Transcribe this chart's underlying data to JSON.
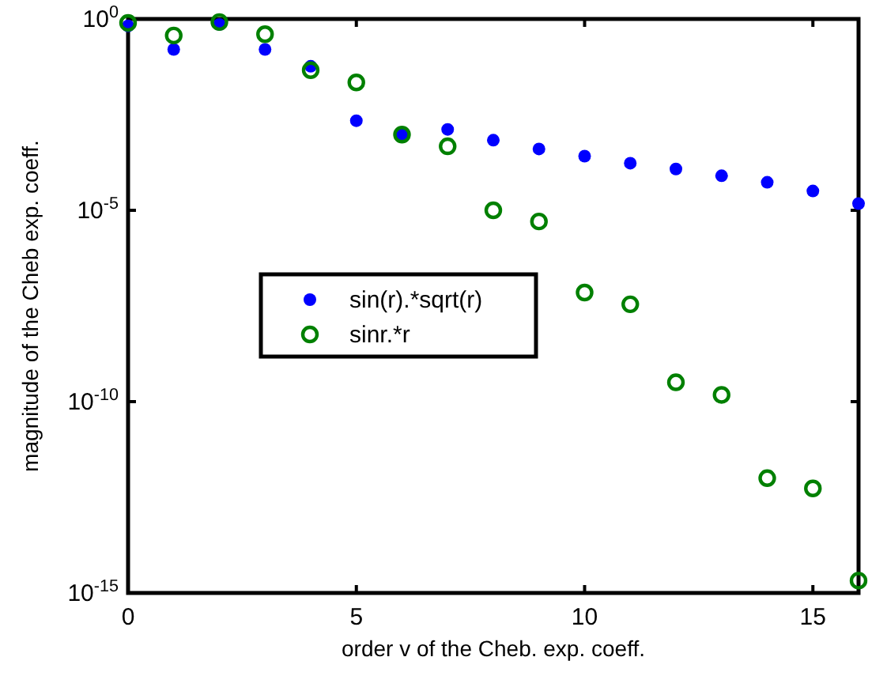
{
  "chart_data": {
    "type": "scatter",
    "xlabel": "order v of the Cheb. exp. coeff.",
    "ylabel": "magnitude of the Cheb exp. coeff.",
    "x": [
      0,
      1,
      2,
      3,
      4,
      5,
      6,
      7,
      8,
      9,
      10,
      11,
      12,
      13,
      14,
      15,
      16
    ],
    "series": [
      {
        "name": "sin(r).*sqrt(r)",
        "color": "#0000ff",
        "values": [
          0.66,
          0.16,
          0.72,
          0.16,
          0.058,
          0.0022,
          0.00095,
          0.0013,
          0.00068,
          0.0004,
          0.00026,
          0.00017,
          0.00012,
          8e-05,
          5.4e-05,
          3.2e-05,
          1.5e-05
        ]
      },
      {
        "name": "sinr.*r",
        "color": "#008000",
        "values": [
          0.79,
          0.37,
          0.83,
          0.4,
          0.046,
          0.022,
          0.00095,
          0.00047,
          1e-05,
          5.1e-06,
          7.1e-08,
          3.5e-08,
          3.2e-10,
          1.5e-10,
          1e-12,
          5.4e-13,
          2.1e-15
        ]
      }
    ],
    "xlim": [
      0,
      16
    ],
    "xticks": [
      0,
      5,
      10,
      15
    ],
    "ylim": [
      1e-15,
      1
    ],
    "yticks": [
      {
        "value": 1e-15,
        "label": "10$^{-15}$"
      },
      {
        "value": 1e-10,
        "label": "10$^{-10}$"
      },
      {
        "value": 1e-05,
        "label": "10$^{-5}$"
      },
      {
        "value": 1,
        "label": "10$^{0}$"
      }
    ],
    "log": "y",
    "grid": false,
    "legend": "left",
    "marker": "circle"
  }
}
